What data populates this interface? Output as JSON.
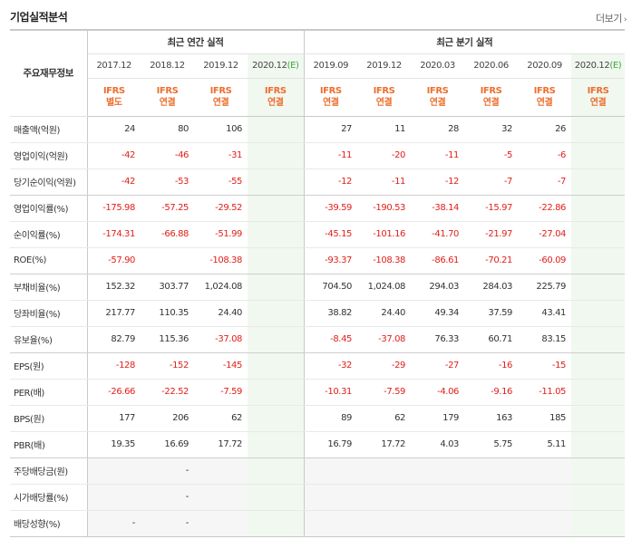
{
  "header": {
    "title": "기업실적분석",
    "more_label": "더보기"
  },
  "table": {
    "corner_label": "주요재무정보",
    "group_annual": "최근 연간 실적",
    "group_quarter": "최근 분기 실적",
    "periods": [
      "2017.12",
      "2018.12",
      "2019.12",
      "2020.12",
      "2019.09",
      "2019.12",
      "2020.03",
      "2020.06",
      "2020.09",
      "2020.12"
    ],
    "estimate_suffix": "(E)",
    "ifrs": [
      "IFRS",
      "IFRS",
      "IFRS",
      "IFRS",
      "IFRS",
      "IFRS",
      "IFRS",
      "IFRS",
      "IFRS",
      "IFRS"
    ],
    "basis": [
      "별도",
      "연결",
      "연결",
      "연결",
      "연결",
      "연결",
      "연결",
      "연결",
      "연결",
      "연결"
    ],
    "rows": [
      {
        "label": "매출액(억원)",
        "values": [
          "24",
          "80",
          "106",
          "",
          "27",
          "11",
          "28",
          "32",
          "26",
          ""
        ]
      },
      {
        "label": "영업이익(억원)",
        "values": [
          "-42",
          "-46",
          "-31",
          "",
          "-11",
          "-20",
          "-11",
          "-5",
          "-6",
          ""
        ]
      },
      {
        "label": "당기순이익(억원)",
        "values": [
          "-42",
          "-53",
          "-55",
          "",
          "-12",
          "-11",
          "-12",
          "-7",
          "-7",
          ""
        ]
      },
      {
        "label": "영업이익률(%)",
        "values": [
          "-175.98",
          "-57.25",
          "-29.52",
          "",
          "-39.59",
          "-190.53",
          "-38.14",
          "-15.97",
          "-22.86",
          ""
        ]
      },
      {
        "label": "순이익률(%)",
        "values": [
          "-174.31",
          "-66.88",
          "-51.99",
          "",
          "-45.15",
          "-101.16",
          "-41.70",
          "-21.97",
          "-27.04",
          ""
        ]
      },
      {
        "label": "ROE(%)",
        "values": [
          "-57.90",
          "",
          "-108.38",
          "",
          "-93.37",
          "-108.38",
          "-86.61",
          "-70.21",
          "-60.09",
          ""
        ]
      },
      {
        "label": "부채비율(%)",
        "values": [
          "152.32",
          "303.77",
          "1,024.08",
          "",
          "704.50",
          "1,024.08",
          "294.03",
          "284.03",
          "225.79",
          ""
        ]
      },
      {
        "label": "당좌비율(%)",
        "values": [
          "217.77",
          "110.35",
          "24.40",
          "",
          "38.82",
          "24.40",
          "49.34",
          "37.59",
          "43.41",
          ""
        ]
      },
      {
        "label": "유보율(%)",
        "values": [
          "82.79",
          "115.36",
          "-37.08",
          "",
          "-8.45",
          "-37.08",
          "76.33",
          "60.71",
          "83.15",
          ""
        ]
      },
      {
        "label": "EPS(원)",
        "values": [
          "-128",
          "-152",
          "-145",
          "",
          "-32",
          "-29",
          "-27",
          "-16",
          "-15",
          ""
        ]
      },
      {
        "label": "PER(배)",
        "values": [
          "-26.66",
          "-22.52",
          "-7.59",
          "",
          "-10.31",
          "-7.59",
          "-4.06",
          "-9.16",
          "-11.05",
          ""
        ]
      },
      {
        "label": "BPS(원)",
        "values": [
          "177",
          "206",
          "62",
          "",
          "89",
          "62",
          "179",
          "163",
          "185",
          ""
        ]
      },
      {
        "label": "PBR(배)",
        "values": [
          "19.35",
          "16.69",
          "17.72",
          "",
          "16.79",
          "17.72",
          "4.03",
          "5.75",
          "5.11",
          ""
        ]
      },
      {
        "label": "주당배당금(원)",
        "values": [
          "",
          "-",
          "",
          "",
          "",
          "",
          "",
          "",
          "",
          ""
        ]
      },
      {
        "label": "시가배당률(%)",
        "values": [
          "",
          "-",
          "",
          "",
          "",
          "",
          "",
          "",
          "",
          ""
        ]
      },
      {
        "label": "배당성향(%)",
        "values": [
          "-",
          "-",
          "",
          "",
          "",
          "",
          "",
          "",
          "",
          ""
        ]
      }
    ]
  },
  "colors": {
    "ifrs_orange": "#ed6f2f",
    "negative_red": "#e0201b",
    "estimate_bg": "#f1f8f0",
    "estimate_green": "#3fa53a"
  }
}
